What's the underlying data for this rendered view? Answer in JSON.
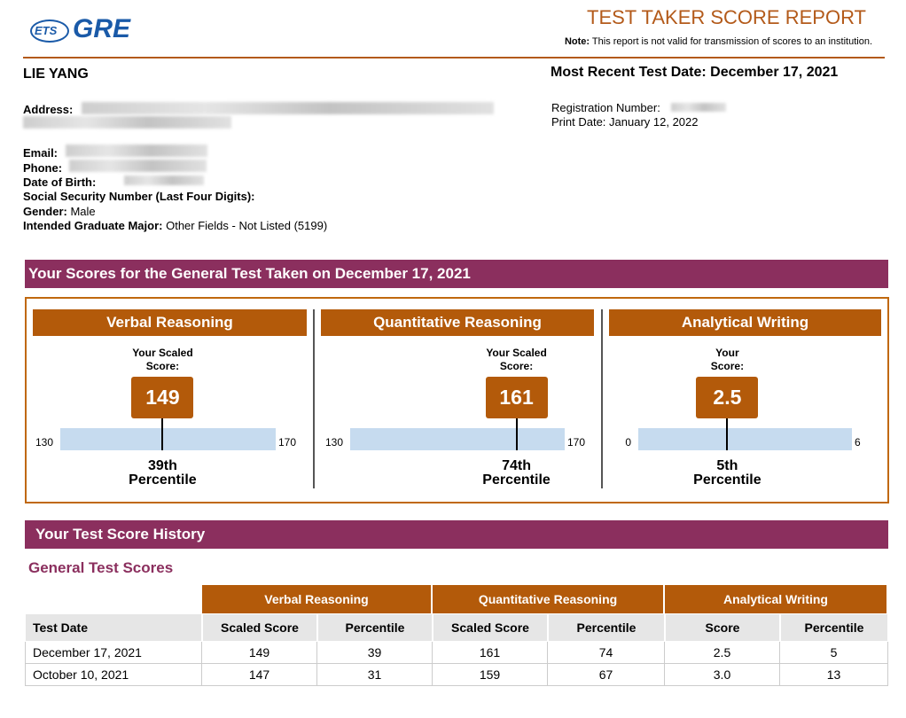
{
  "header": {
    "logo_ets": "ETS",
    "logo_gre": "GRE",
    "title": "TEST TAKER SCORE REPORT",
    "note_label": "Note:",
    "note": "This report is not valid for transmission of scores to an institution."
  },
  "candidate": {
    "name": "LIE YANG",
    "address_label": "Address:",
    "email_label": "Email:",
    "phone_label": "Phone:",
    "dob_label": "Date of Birth:",
    "ssn_label": "Social Security Number (Last Four Digits):",
    "gender_label": "Gender:",
    "gender": "Male",
    "major_label": "Intended Graduate Major:",
    "major": "Other Fields - Not Listed (5199)"
  },
  "report": {
    "test_date": "Most Recent Test Date: December 17, 2021",
    "registration_label": "Registration Number:",
    "print_date": "Print Date: January 12, 2022"
  },
  "scores_section": {
    "title": "Your Scores for the General Test Taken on December 17, 2021",
    "panels": [
      {
        "title": "Verbal Reasoning",
        "caption": [
          "Your Scaled",
          "Score:"
        ],
        "score": 149,
        "min": 130,
        "max": 170,
        "percentile": "39th",
        "percentile_label": "Percentile"
      },
      {
        "title": "Quantitative Reasoning",
        "caption": [
          "Your Scaled",
          "Score:"
        ],
        "score": 161,
        "min": 130,
        "max": 170,
        "percentile": "74th",
        "percentile_label": "Percentile"
      },
      {
        "title": "Analytical Writing",
        "caption": [
          "Your",
          "Score:"
        ],
        "score": 2.5,
        "min": 0,
        "max": 6,
        "percentile": "5th",
        "percentile_label": "Percentile"
      }
    ]
  },
  "history": {
    "title": "Your Test Score History",
    "subtitle": "General Test Scores",
    "groups": [
      "Verbal Reasoning",
      "Quantitative Reasoning",
      "Analytical Writing"
    ],
    "columns": [
      "Test Date",
      "Scaled Score",
      "Percentile",
      "Scaled Score",
      "Percentile",
      "Score",
      "Percentile"
    ],
    "rows": [
      [
        "December 17, 2021",
        149,
        39,
        161,
        74,
        2.5,
        5
      ],
      [
        "October 10, 2021",
        147,
        31,
        159,
        67,
        "3.0",
        13
      ]
    ]
  }
}
